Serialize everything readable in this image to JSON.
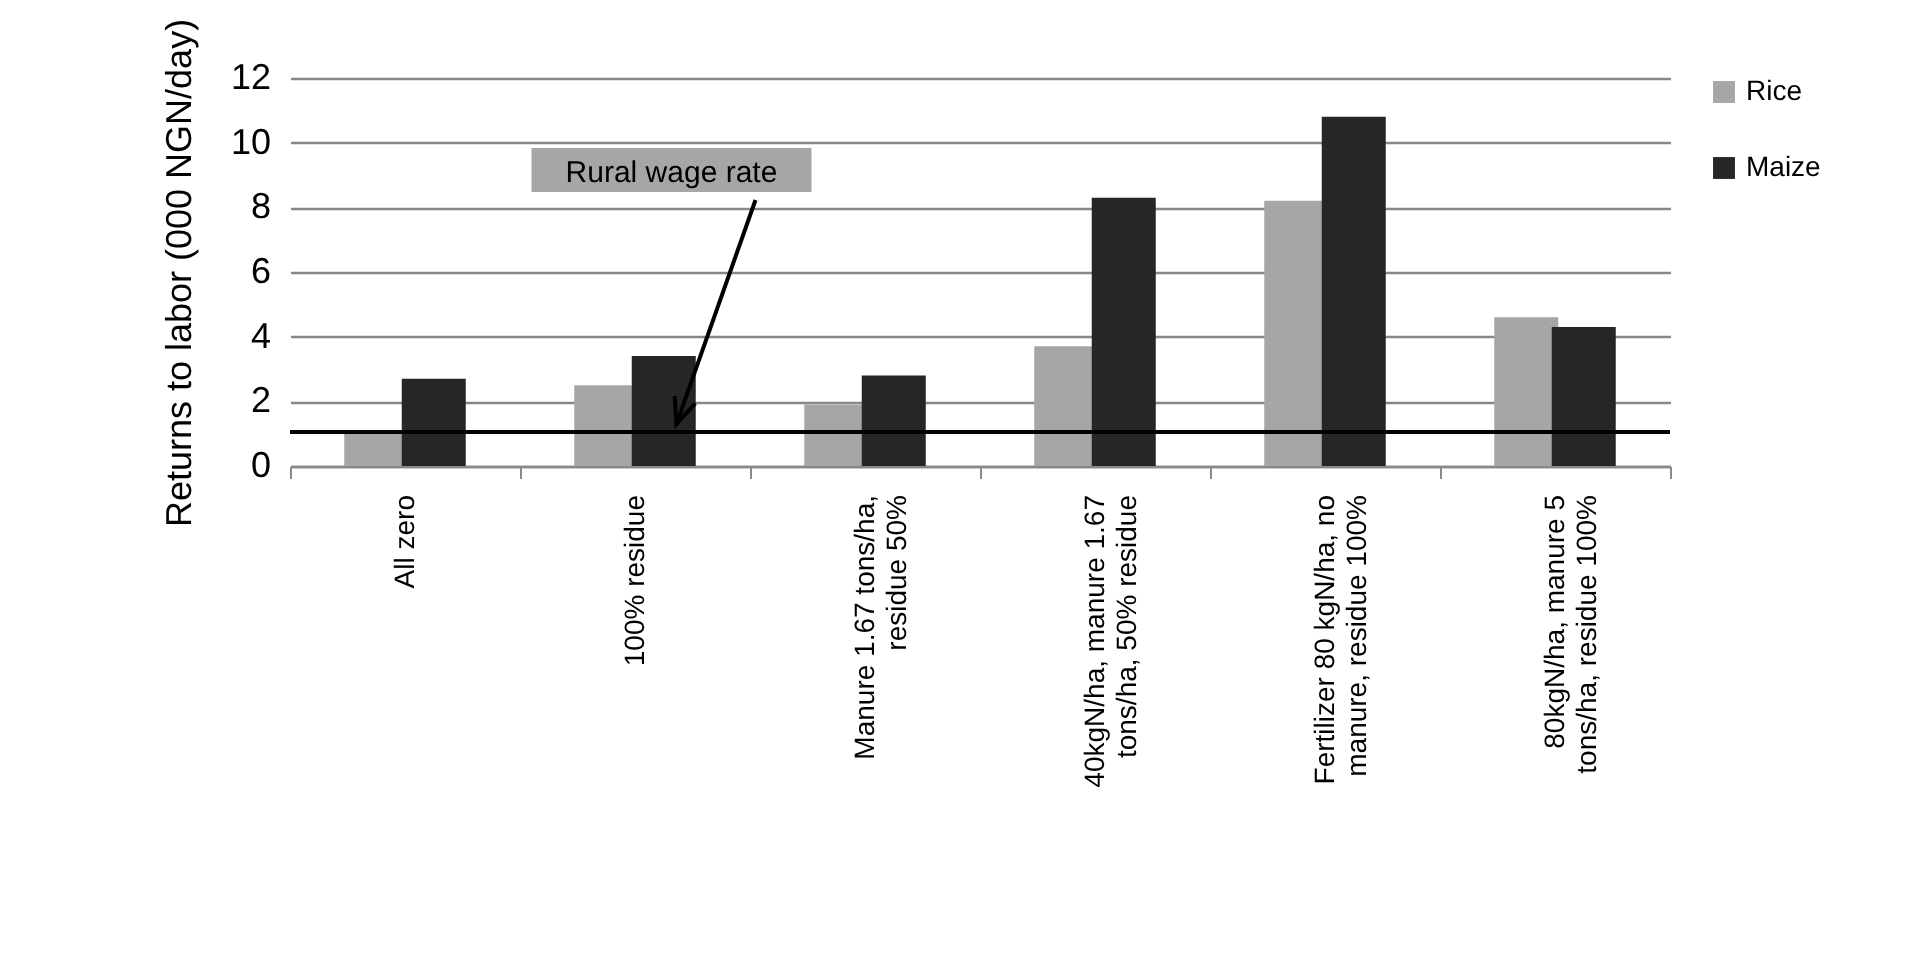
{
  "chart_data": {
    "type": "bar",
    "categories": [
      "All zero",
      "100% residue",
      "Manure 1.67 tons/ha, residue 50%",
      "40kgN/ha, manure 1.67 tons/ha, 50% residue",
      "Fertilizer 80 kgN/ha, no manure, residue 100%",
      "80kgN/ha, manure 5 tons/ha, residue 100%"
    ],
    "series": [
      {
        "name": "Rice",
        "color": "#a6a6a6",
        "values": [
          1.0,
          2.5,
          1.9,
          3.7,
          8.2,
          4.6
        ]
      },
      {
        "name": "Maize",
        "color": "#262626",
        "values": [
          2.7,
          3.4,
          2.8,
          8.3,
          10.8,
          4.3
        ]
      }
    ],
    "ylabel": "Returns to labor (000 NGN/day)",
    "ylim": [
      0,
      12
    ],
    "yticks": [
      0,
      2,
      4,
      6,
      8,
      10,
      12
    ],
    "ref_lines": [
      {
        "axis": "y",
        "value": 1.05,
        "label": "Rural wage rate",
        "color": "#000000"
      }
    ],
    "grid": "y",
    "legend": "right"
  }
}
